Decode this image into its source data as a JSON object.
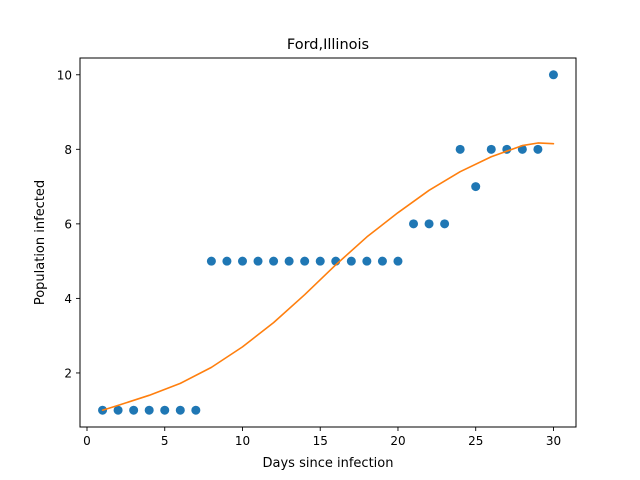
{
  "chart_data": {
    "type": "scatter",
    "title": "Ford,Illinois",
    "xlabel": "Days since infection",
    "ylabel": "Population infected",
    "xlim": [
      -0.45,
      31.45
    ],
    "ylim": [
      0.55,
      10.45
    ],
    "xticks": [
      0,
      5,
      10,
      15,
      20,
      25,
      30
    ],
    "yticks": [
      2,
      4,
      6,
      8,
      10
    ],
    "grid": false,
    "series": [
      {
        "kind": "points",
        "color": "#1f77b4",
        "x": [
          1,
          2,
          3,
          4,
          5,
          6,
          7,
          8,
          9,
          10,
          11,
          12,
          13,
          14,
          15,
          16,
          17,
          18,
          19,
          20,
          21,
          22,
          23,
          24,
          25,
          26,
          27,
          28,
          29,
          30
        ],
        "y": [
          1,
          1,
          1,
          1,
          1,
          1,
          1,
          5,
          5,
          5,
          5,
          5,
          5,
          5,
          5,
          5,
          5,
          5,
          5,
          5,
          6,
          6,
          6,
          8,
          7,
          8,
          8,
          8,
          8,
          10
        ]
      },
      {
        "kind": "line",
        "color": "#ff7f0e",
        "x": [
          1,
          2,
          4,
          6,
          8,
          10,
          12,
          14,
          16,
          18,
          20,
          22,
          24,
          26,
          28,
          29,
          30
        ],
        "y": [
          1.0,
          1.13,
          1.4,
          1.72,
          2.15,
          2.7,
          3.35,
          4.1,
          4.9,
          5.65,
          6.3,
          6.9,
          7.4,
          7.8,
          8.1,
          8.17,
          8.15
        ]
      }
    ]
  }
}
